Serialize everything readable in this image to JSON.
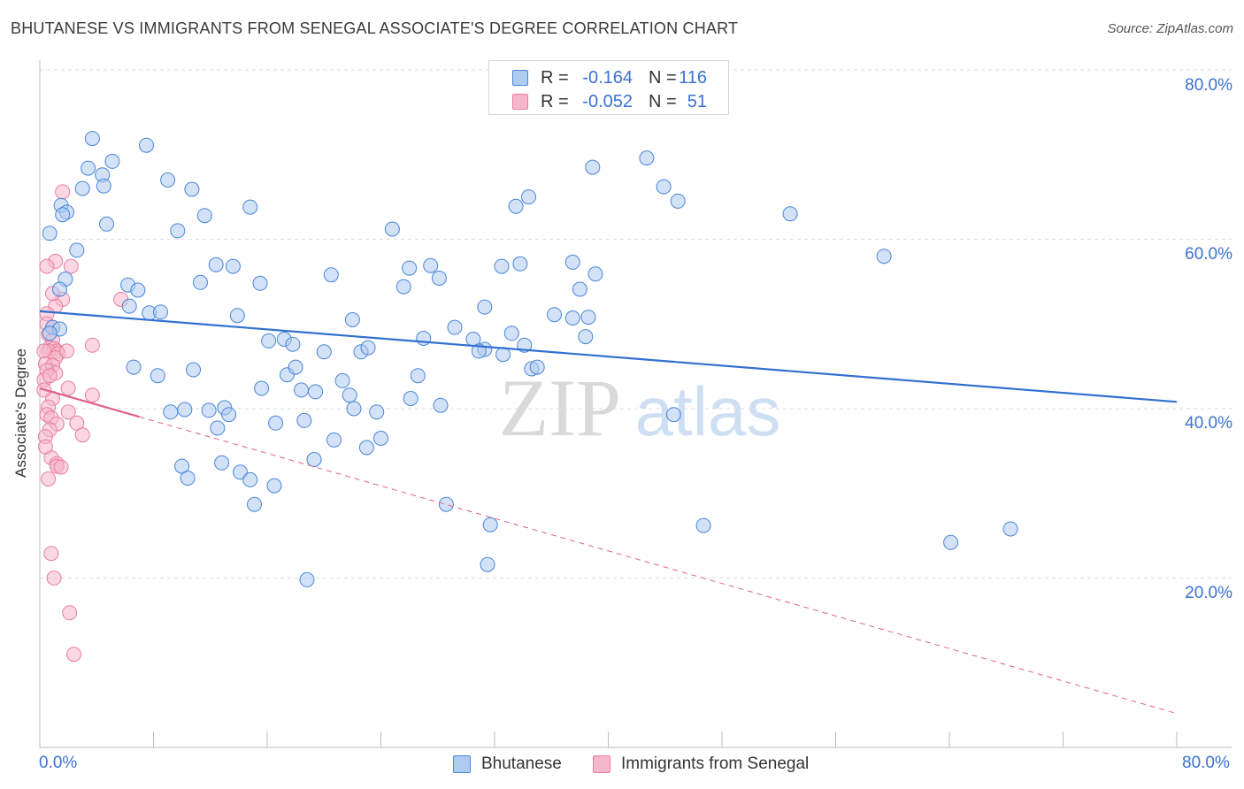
{
  "title": "BHUTANESE VS IMMIGRANTS FROM SENEGAL ASSOCIATE'S DEGREE CORRELATION CHART",
  "source": "Source: ZipAtlas.com",
  "watermark": {
    "zip": "ZIP",
    "atlas": "atlas"
  },
  "legend_top": {
    "rows": [
      {
        "r_label": "R =",
        "r_value": "-0.164",
        "n_label": "N =",
        "n_value": "116"
      },
      {
        "r_label": "R =",
        "r_value": "-0.052",
        "n_label": "N =",
        "n_value": "51"
      }
    ]
  },
  "legend_bottom": [
    "Bhutanese",
    "Immigrants from Senegal"
  ],
  "y_axis_label": "Associate's Degree",
  "y_tick_labels": [
    "80.0%",
    "60.0%",
    "40.0%",
    "20.0%"
  ],
  "x_tick_labels": [
    "0.0%",
    "80.0%"
  ],
  "colors": {
    "blue_fill": "#aecbf0",
    "blue_stroke": "#4a86d8",
    "blue_line": "#3070d0",
    "pink_fill": "#f6b6cb",
    "pink_stroke": "#e87ea0",
    "pink_line": "#e0608a",
    "tick_text": "#3a72d0",
    "grid": "#dedede"
  },
  "chart_data": {
    "type": "scatter",
    "xlabel": "",
    "ylabel": "Associate's Degree",
    "xlim": [
      0,
      80
    ],
    "ylim": [
      0,
      82
    ],
    "grid": true,
    "legend_position": "top-center",
    "series": [
      {
        "name": "Bhutanese",
        "R": -0.164,
        "N": 116,
        "trend": {
          "x": [
            0,
            80
          ],
          "y": [
            51.5,
            40.8
          ]
        },
        "points": [
          [
            3.7,
            71.9
          ],
          [
            7.5,
            71.1
          ],
          [
            5.1,
            69.2
          ],
          [
            3.4,
            68.4
          ],
          [
            4.4,
            67.6
          ],
          [
            9.0,
            67.0
          ],
          [
            4.5,
            66.3
          ],
          [
            3.0,
            66.0
          ],
          [
            10.7,
            65.9
          ],
          [
            1.5,
            64.0
          ],
          [
            1.9,
            63.2
          ],
          [
            1.6,
            62.9
          ],
          [
            11.6,
            62.8
          ],
          [
            14.8,
            63.8
          ],
          [
            4.7,
            61.8
          ],
          [
            9.7,
            61.0
          ],
          [
            0.7,
            60.7
          ],
          [
            2.6,
            58.7
          ],
          [
            13.6,
            56.8
          ],
          [
            1.8,
            55.3
          ],
          [
            11.3,
            54.9
          ],
          [
            6.2,
            54.6
          ],
          [
            1.4,
            54.1
          ],
          [
            6.9,
            54.0
          ],
          [
            6.3,
            52.1
          ],
          [
            7.7,
            51.3
          ],
          [
            8.5,
            51.4
          ],
          [
            13.9,
            51.0
          ],
          [
            0.9,
            49.6
          ],
          [
            1.4,
            49.4
          ],
          [
            0.7,
            48.9
          ],
          [
            16.1,
            48.0
          ],
          [
            17.2,
            48.2
          ],
          [
            17.8,
            47.6
          ],
          [
            20.0,
            46.7
          ],
          [
            22.6,
            46.7
          ],
          [
            23.1,
            47.2
          ],
          [
            15.6,
            42.4
          ],
          [
            6.6,
            44.9
          ],
          [
            8.3,
            43.9
          ],
          [
            10.8,
            44.6
          ],
          [
            17.4,
            44.0
          ],
          [
            18.0,
            44.9
          ],
          [
            18.4,
            42.2
          ],
          [
            19.4,
            42.0
          ],
          [
            21.3,
            43.3
          ],
          [
            21.8,
            41.6
          ],
          [
            22.1,
            40.0
          ],
          [
            23.7,
            39.6
          ],
          [
            9.2,
            39.6
          ],
          [
            10.2,
            39.9
          ],
          [
            11.9,
            39.8
          ],
          [
            13.0,
            40.1
          ],
          [
            13.3,
            39.3
          ],
          [
            12.5,
            37.7
          ],
          [
            16.6,
            38.3
          ],
          [
            18.6,
            38.6
          ],
          [
            20.7,
            36.3
          ],
          [
            23.0,
            35.4
          ],
          [
            24.0,
            36.5
          ],
          [
            10.0,
            33.2
          ],
          [
            10.4,
            31.8
          ],
          [
            12.8,
            33.6
          ],
          [
            14.1,
            32.5
          ],
          [
            14.8,
            31.6
          ],
          [
            16.5,
            30.9
          ],
          [
            15.1,
            28.7
          ],
          [
            19.3,
            34.0
          ],
          [
            18.8,
            19.8
          ],
          [
            26.0,
            56.6
          ],
          [
            24.8,
            61.2
          ],
          [
            25.6,
            54.4
          ],
          [
            28.1,
            55.4
          ],
          [
            31.3,
            52.0
          ],
          [
            32.5,
            56.8
          ],
          [
            33.8,
            57.1
          ],
          [
            29.2,
            49.6
          ],
          [
            30.5,
            48.2
          ],
          [
            33.2,
            48.9
          ],
          [
            34.1,
            47.5
          ],
          [
            36.2,
            51.1
          ],
          [
            37.5,
            50.7
          ],
          [
            38.6,
            50.8
          ],
          [
            37.5,
            57.3
          ],
          [
            38.0,
            54.1
          ],
          [
            39.1,
            55.9
          ],
          [
            38.4,
            48.5
          ],
          [
            31.3,
            47.0
          ],
          [
            32.6,
            46.4
          ],
          [
            34.6,
            44.7
          ],
          [
            35.0,
            44.9
          ],
          [
            26.6,
            43.9
          ],
          [
            27.0,
            48.3
          ],
          [
            26.1,
            41.2
          ],
          [
            28.2,
            40.4
          ],
          [
            30.9,
            46.8
          ],
          [
            28.6,
            28.7
          ],
          [
            31.7,
            26.3
          ],
          [
            31.5,
            21.6
          ],
          [
            33.5,
            63.9
          ],
          [
            34.4,
            65.0
          ],
          [
            38.9,
            68.5
          ],
          [
            42.7,
            69.6
          ],
          [
            43.9,
            66.2
          ],
          [
            44.9,
            64.5
          ],
          [
            52.8,
            63.0
          ],
          [
            59.4,
            58.0
          ],
          [
            44.6,
            39.3
          ],
          [
            46.7,
            26.2
          ],
          [
            64.1,
            24.2
          ],
          [
            68.3,
            25.8
          ],
          [
            12.4,
            57.0
          ],
          [
            15.5,
            54.8
          ],
          [
            20.5,
            55.8
          ],
          [
            27.5,
            56.9
          ],
          [
            22.0,
            50.5
          ]
        ]
      },
      {
        "name": "Immigrants from Senegal",
        "R": -0.052,
        "N": 51,
        "trend": {
          "x": [
            0,
            80
          ],
          "y": [
            42.4,
            4.0
          ]
        },
        "trend_solid_to_x": 7,
        "points": [
          [
            1.6,
            65.6
          ],
          [
            1.1,
            57.4
          ],
          [
            2.2,
            56.8
          ],
          [
            0.5,
            56.8
          ],
          [
            1.6,
            52.9
          ],
          [
            1.1,
            52.1
          ],
          [
            0.5,
            51.2
          ],
          [
            0.5,
            50.0
          ],
          [
            0.9,
            49.6
          ],
          [
            0.6,
            48.8
          ],
          [
            0.9,
            48.1
          ],
          [
            0.7,
            47.2
          ],
          [
            1.0,
            47.1
          ],
          [
            1.2,
            46.8
          ],
          [
            0.6,
            46.8
          ],
          [
            0.3,
            46.8
          ],
          [
            1.3,
            46.5
          ],
          [
            1.1,
            46.0
          ],
          [
            0.4,
            45.3
          ],
          [
            0.9,
            45.1
          ],
          [
            1.1,
            44.2
          ],
          [
            0.5,
            44.5
          ],
          [
            0.3,
            43.4
          ],
          [
            3.7,
            47.5
          ],
          [
            2.0,
            42.4
          ],
          [
            3.7,
            41.6
          ],
          [
            0.9,
            41.2
          ],
          [
            0.6,
            40.2
          ],
          [
            2.0,
            39.6
          ],
          [
            0.5,
            39.3
          ],
          [
            0.8,
            38.9
          ],
          [
            1.2,
            38.2
          ],
          [
            2.6,
            38.3
          ],
          [
            0.7,
            37.5
          ],
          [
            3.0,
            36.9
          ],
          [
            0.4,
            36.7
          ],
          [
            0.8,
            34.2
          ],
          [
            1.2,
            33.5
          ],
          [
            1.2,
            33.2
          ],
          [
            1.5,
            33.1
          ],
          [
            0.6,
            31.7
          ],
          [
            0.8,
            22.9
          ],
          [
            1.0,
            20.0
          ],
          [
            2.1,
            15.9
          ],
          [
            2.4,
            11.0
          ],
          [
            0.3,
            42.2
          ],
          [
            5.7,
            52.9
          ],
          [
            1.9,
            46.8
          ],
          [
            0.9,
            53.6
          ],
          [
            0.4,
            35.5
          ],
          [
            0.7,
            43.9
          ]
        ]
      }
    ]
  }
}
